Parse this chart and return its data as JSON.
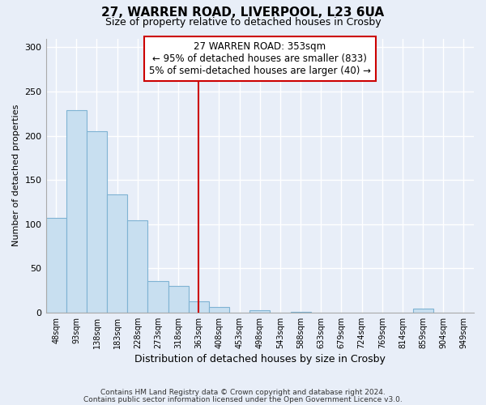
{
  "title": "27, WARREN ROAD, LIVERPOOL, L23 6UA",
  "subtitle": "Size of property relative to detached houses in Crosby",
  "xlabel": "Distribution of detached houses by size in Crosby",
  "ylabel": "Number of detached properties",
  "bar_labels": [
    "48sqm",
    "93sqm",
    "138sqm",
    "183sqm",
    "228sqm",
    "273sqm",
    "318sqm",
    "363sqm",
    "408sqm",
    "453sqm",
    "498sqm",
    "543sqm",
    "588sqm",
    "633sqm",
    "679sqm",
    "724sqm",
    "769sqm",
    "814sqm",
    "859sqm",
    "904sqm",
    "949sqm"
  ],
  "bar_values": [
    107,
    229,
    205,
    134,
    104,
    36,
    30,
    13,
    6,
    0,
    3,
    0,
    1,
    0,
    0,
    0,
    0,
    0,
    4,
    0,
    0
  ],
  "bar_color": "#c8dff0",
  "bar_edge_color": "#7fb3d3",
  "vline_x": 7.0,
  "vline_color": "#cc0000",
  "annotation_title": "27 WARREN ROAD: 353sqm",
  "annotation_line1": "← 95% of detached houses are smaller (833)",
  "annotation_line2": "5% of semi-detached houses are larger (40) →",
  "ylim": [
    0,
    310
  ],
  "yticks": [
    0,
    50,
    100,
    150,
    200,
    250,
    300
  ],
  "footnote1": "Contains HM Land Registry data © Crown copyright and database right 2024.",
  "footnote2": "Contains public sector information licensed under the Open Government Licence v3.0.",
  "bg_color": "#e8eef8",
  "grid_color": "#ffffff",
  "title_fontsize": 11,
  "subtitle_fontsize": 9,
  "annotation_fontsize": 8.5
}
